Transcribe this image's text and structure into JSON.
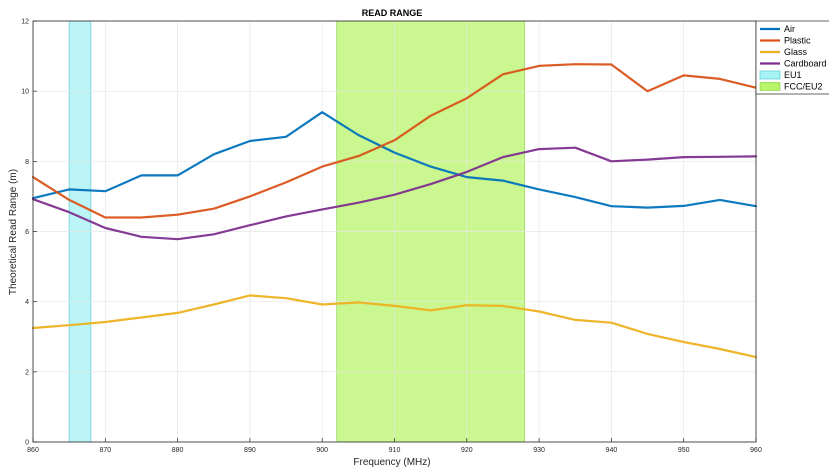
{
  "chart_data": {
    "type": "line",
    "title": "READ RANGE",
    "xlabel": "Frequency (MHz)",
    "ylabel": "Theoretical Read Range (m)",
    "xlim": [
      860,
      960
    ],
    "ylim": [
      0,
      12
    ],
    "xticks": [
      "860",
      "870",
      "880",
      "890",
      "900",
      "910",
      "920",
      "930",
      "940",
      "950",
      "960"
    ],
    "yticks": [
      "0",
      "2",
      "4",
      "6",
      "8",
      "10",
      "12"
    ],
    "grid": true,
    "legend_position": "top-right",
    "x": [
      860,
      865,
      870,
      875,
      880,
      885,
      890,
      895,
      900,
      905,
      910,
      915,
      920,
      925,
      930,
      935,
      940,
      945,
      950,
      955,
      960
    ],
    "series": [
      {
        "name": "Air",
        "color": "#0072BD",
        "values": [
          6.95,
          7.2,
          7.15,
          7.6,
          7.6,
          8.2,
          8.58,
          8.7,
          9.4,
          8.75,
          8.25,
          7.85,
          7.55,
          7.45,
          7.2,
          6.98,
          6.72,
          6.68,
          6.73,
          6.9,
          6.72
        ]
      },
      {
        "name": "Plastic",
        "color": "#D95319",
        "values": [
          7.55,
          6.9,
          6.4,
          6.4,
          6.48,
          6.65,
          7.0,
          7.4,
          7.85,
          8.15,
          8.6,
          9.3,
          9.8,
          10.48,
          10.72,
          10.77,
          10.76,
          10.0,
          10.45,
          10.35,
          10.1
        ]
      },
      {
        "name": "Glass",
        "color": "#EDB120",
        "values": [
          3.25,
          3.33,
          3.42,
          3.55,
          3.68,
          3.92,
          4.18,
          4.1,
          3.92,
          3.98,
          3.88,
          3.75,
          3.9,
          3.88,
          3.72,
          3.48,
          3.4,
          3.08,
          2.85,
          2.65,
          2.42
        ]
      },
      {
        "name": "Cardboard",
        "color": "#7E2F8E",
        "values": [
          6.92,
          6.55,
          6.1,
          5.85,
          5.78,
          5.92,
          6.18,
          6.43,
          6.63,
          6.82,
          7.05,
          7.35,
          7.7,
          8.12,
          8.35,
          8.39,
          8.0,
          8.05,
          8.12,
          8.13,
          8.14
        ]
      }
    ],
    "bands": [
      {
        "name": "EU1",
        "x_start": 865,
        "x_end": 868,
        "fill": "#a6f2f5",
        "edge": "#3cc3cf"
      },
      {
        "name": "FCC/EU2",
        "x_start": 902,
        "x_end": 928,
        "fill": "#b9f56a",
        "edge": "#7ad03a"
      }
    ]
  }
}
